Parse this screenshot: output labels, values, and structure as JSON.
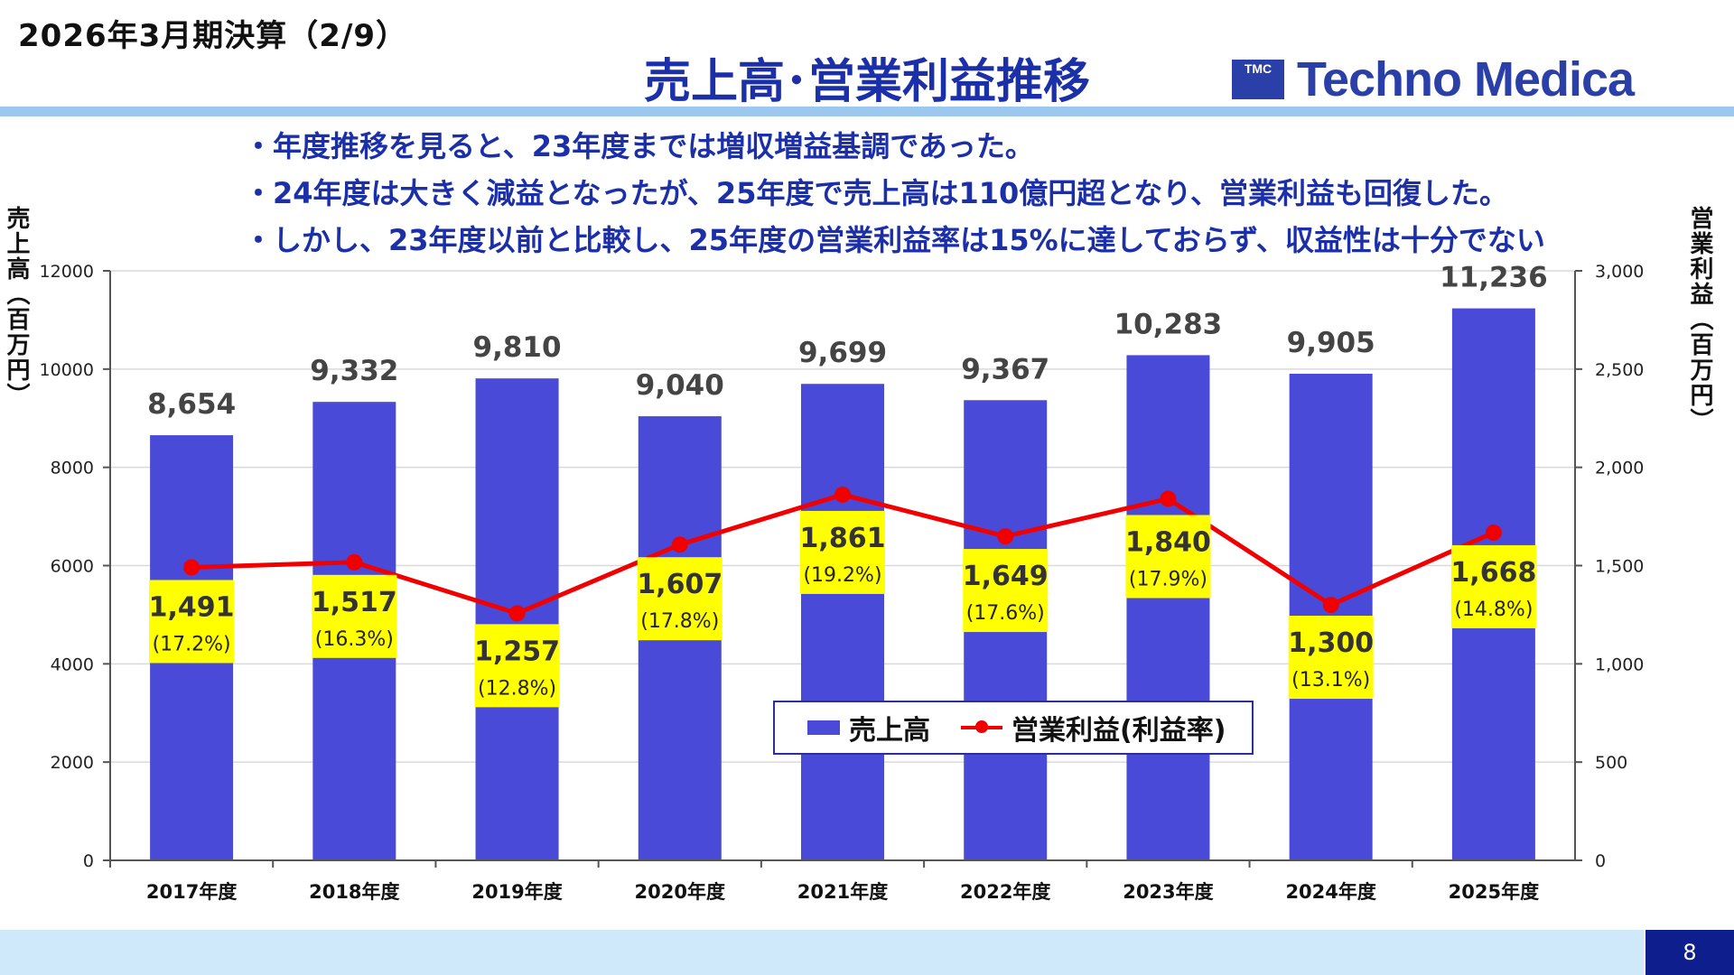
{
  "header": {
    "period_label": "2026年3月期決算（2/9）",
    "title": "売上高･営業利益推移",
    "logo_mark": "TMC",
    "logo_text": "Techno Medica",
    "page_number": "8"
  },
  "bullets": [
    "・年度推移を見ると、23年度までは増収増益基調であった。",
    "・24年度は大きく減益となったが、25年度で売上高は110億円超となり、営業利益も回復した。",
    "・しかし、23年度以前と比較し、25年度の営業利益率は15%に達しておらず、収益性は十分でない"
  ],
  "colors": {
    "bar": "#4A4AD8",
    "line": "#F00000",
    "label_box": "#FFFF00",
    "title": "#1B2FA8",
    "header_rule": "#9CC8F0",
    "footer": "#CFE9FB",
    "page_box": "#0E1E8C"
  },
  "chart_data": {
    "type": "bar",
    "categories": [
      "2017年度",
      "2018年度",
      "2019年度",
      "2020年度",
      "2021年度",
      "2022年度",
      "2023年度",
      "2024年度",
      "2025年度"
    ],
    "series": [
      {
        "name": "売上高",
        "type": "bar",
        "axis": "left",
        "values": [
          8654,
          9332,
          9810,
          9040,
          9699,
          9367,
          10283,
          9905,
          11236
        ],
        "labels": [
          "8,654",
          "9,332",
          "9,810",
          "9,040",
          "9,699",
          "9,367",
          "10,283",
          "9,905",
          "11,236"
        ]
      },
      {
        "name": "営業利益(利益率)",
        "type": "line",
        "axis": "right",
        "values": [
          1491,
          1517,
          1257,
          1607,
          1861,
          1649,
          1840,
          1300,
          1668
        ],
        "labels": [
          "1,491",
          "1,517",
          "1,257",
          "1,607",
          "1,861",
          "1,649",
          "1,840",
          "1,300",
          "1,668"
        ],
        "margins": [
          "(17.2%)",
          "(16.3%)",
          "(12.8%)",
          "(17.8%)",
          "(19.2%)",
          "(17.6%)",
          "(17.9%)",
          "(13.1%)",
          "(14.8%)"
        ]
      }
    ],
    "ylabel": "売上高（百万円）",
    "y2label": "営業利益（百万円）",
    "ylim": [
      0,
      12000
    ],
    "y2lim": [
      0,
      3000
    ],
    "yticks": [
      "0",
      "2000",
      "4000",
      "6000",
      "8000",
      "10000",
      "12000"
    ],
    "y2ticks": [
      "0",
      "500",
      "1,000",
      "1,500",
      "2,000",
      "2,500",
      "3,000"
    ],
    "grid": true,
    "legend": "bottom-center"
  }
}
